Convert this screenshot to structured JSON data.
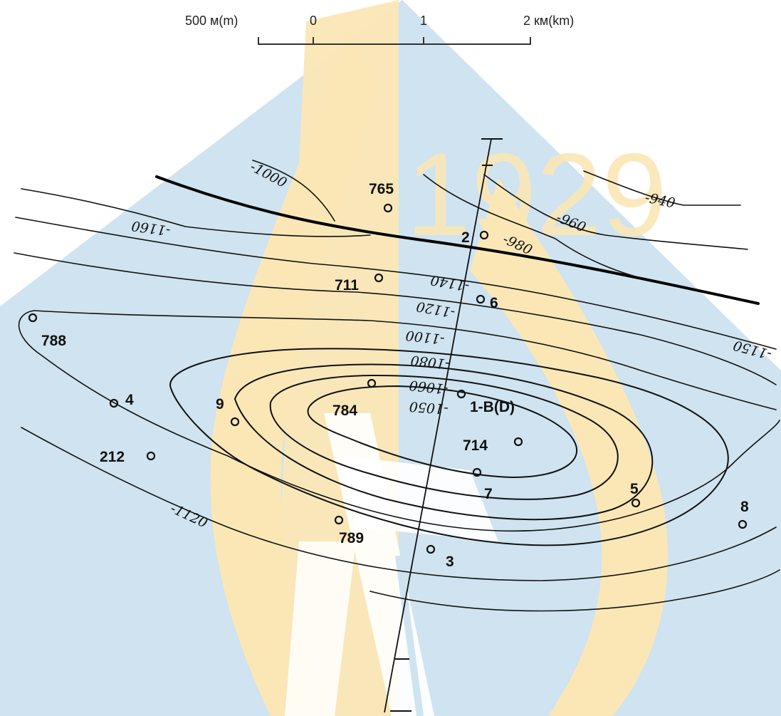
{
  "scale_bar": {
    "labels": [
      "500 м(m)",
      "0",
      "1",
      "2 км(km)"
    ]
  },
  "watermark": {
    "text": "1929"
  },
  "contour_labels": [
    "-1000",
    "-1160",
    "-940",
    "-960",
    "-980",
    "-1140",
    "-1120",
    "-1100",
    "-1080",
    "-1060",
    "-1050",
    "-1150",
    "-1120"
  ],
  "wells": [
    "765",
    "2",
    "711",
    "6",
    "788",
    "4",
    "9",
    "784",
    "1-B(D)",
    "212",
    "714",
    "7",
    "5",
    "8",
    "789",
    "3"
  ],
  "colors": {
    "watermark_blue": "#cfe3f0",
    "watermark_yellow": "#fbe7b6",
    "watermark_white": "#ffffff",
    "lines": "#111111"
  }
}
